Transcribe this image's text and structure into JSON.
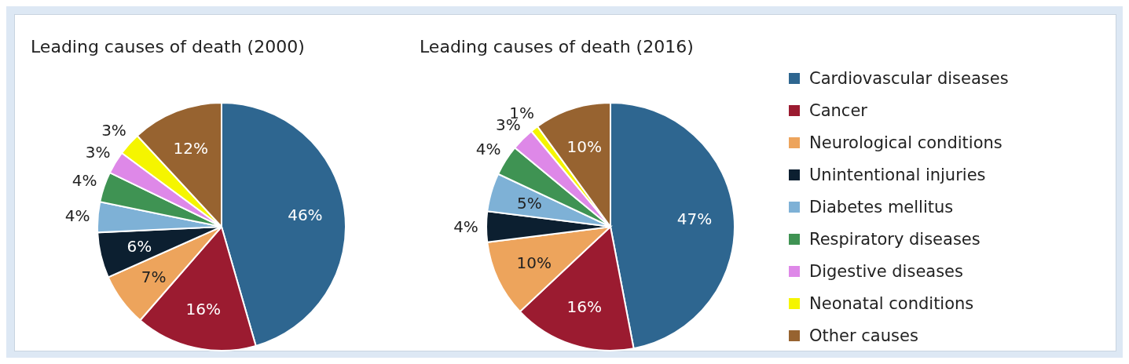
{
  "chart_data": [
    {
      "type": "pie",
      "title": "Leading causes of death (2000)",
      "categories": [
        null,
        null,
        null,
        null,
        null,
        null,
        null,
        null,
        null
      ],
      "values": [
        46,
        16,
        7,
        6,
        4,
        4,
        3,
        3,
        12
      ],
      "value_labels": [
        "46%",
        "16%",
        "7%",
        "6%",
        "4%",
        "4%",
        "3%",
        "3%",
        "12%"
      ],
      "colors": [
        "#2e6690",
        "#9b1b30",
        "#eda45c",
        "#0c1f30",
        "#7eb1d6",
        "#3f9353",
        "#de88e8",
        "#f5f500",
        "#976330"
      ]
    },
    {
      "type": "pie",
      "title": "Leading causes of death (2016)",
      "categories": [
        "Cardiovascular diseases",
        "Cancer",
        "Neurological conditions",
        "Unintentional injuries",
        "Diabetes mellitus",
        "Respiratory diseases",
        "Digestive diseases",
        "Neonatal conditions",
        "Other causes"
      ],
      "values": [
        47,
        16,
        10,
        4,
        5,
        4,
        3,
        1,
        10
      ],
      "value_labels": [
        "47%",
        "16%",
        "10%",
        "4%",
        "5%",
        "4%",
        "3%",
        "1%",
        "10%"
      ],
      "colors": [
        "#2e6690",
        "#9b1b30",
        "#eda45c",
        "#0c1f30",
        "#7eb1d6",
        "#3f9353",
        "#de88e8",
        "#f5f500",
        "#976330"
      ],
      "legend": "right"
    }
  ]
}
